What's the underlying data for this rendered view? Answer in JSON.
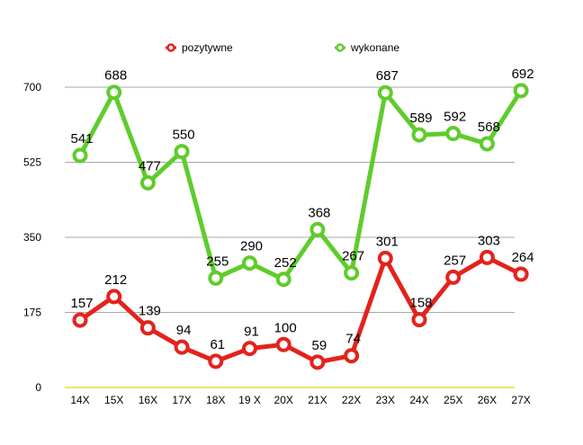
{
  "chart_data": {
    "type": "line",
    "categories": [
      "14X",
      "15X",
      "16X",
      "17X",
      "18X",
      "19 X",
      "20X",
      "21X",
      "22X",
      "23X",
      "24X",
      "25X",
      "26X",
      "27X"
    ],
    "series": [
      {
        "name": "pozytywne",
        "color": "#e3231c",
        "values": [
          157,
          212,
          139,
          94,
          61,
          91,
          100,
          59,
          74,
          301,
          158,
          257,
          303,
          264
        ]
      },
      {
        "name": "wykonane",
        "color": "#5fcc2c",
        "values": [
          541,
          688,
          477,
          550,
          255,
          290,
          252,
          368,
          267,
          687,
          589,
          592,
          568,
          692
        ]
      }
    ],
    "yticks": [
      "0",
      "175",
      "350",
      "525",
      "700"
    ],
    "ylim": [
      0,
      700
    ],
    "grid": true,
    "gridline_color": "#a8a8a8",
    "baseline_color": "#e8d21a",
    "legend_position": "top",
    "data_labels": true
  }
}
